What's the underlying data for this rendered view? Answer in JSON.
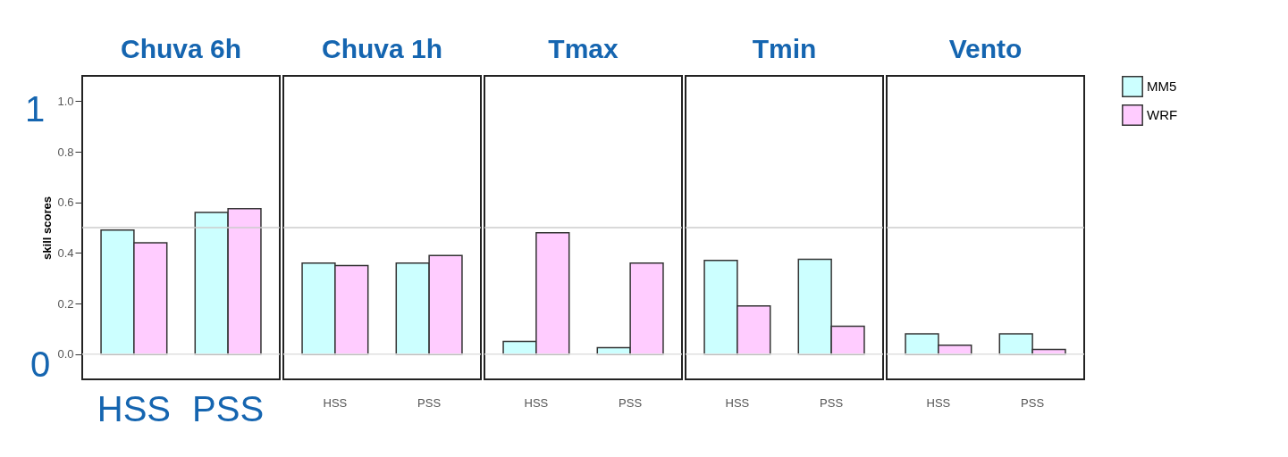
{
  "chart_data": [
    {
      "type": "bar",
      "title": "Chuva 6h",
      "ylabel": "skill scores",
      "categories": [
        "HSS",
        "PSS"
      ],
      "ylim": [
        -0.1,
        1.1
      ],
      "yticks": [
        {
          "value": 0,
          "label": "0.0"
        },
        {
          "value": 0.2,
          "label": "0.2"
        },
        {
          "value": 0.4,
          "label": "0.4"
        },
        {
          "value": 0.6,
          "label": "0.6"
        },
        {
          "value": 0.8,
          "label": "0.8"
        },
        {
          "value": 1,
          "label": "1.0"
        }
      ],
      "annotations": [
        "1",
        "0"
      ],
      "legend": "right",
      "ref_lines": [
        {
          "axis": "y",
          "value": 0.5,
          "color": "#cccccc"
        },
        {
          "axis": "y",
          "value": 0,
          "color": "#e0e0e0"
        }
      ],
      "series": [
        {
          "name": "MM5",
          "color": "#ccffff",
          "values": [
            0.49,
            0.56
          ]
        },
        {
          "name": "WRF",
          "color": "#ffccff",
          "values": [
            0.44,
            0.575
          ]
        }
      ]
    },
    {
      "type": "bar",
      "title": "Chuva 1h",
      "categories": [
        "HSS",
        "PSS"
      ],
      "ylim": [
        -0.1,
        1.1
      ],
      "tick_labels": "x",
      "ref_lines": [
        {
          "axis": "y",
          "value": 0.5,
          "color": "#cccccc"
        },
        {
          "axis": "y",
          "value": 0,
          "color": "#e0e0e0"
        }
      ],
      "series": [
        {
          "name": "MM5",
          "color": "#ccffff",
          "values": [
            0.36,
            0.36
          ]
        },
        {
          "name": "WRF",
          "color": "#ffccff",
          "values": [
            0.35,
            0.39
          ]
        }
      ]
    },
    {
      "type": "bar",
      "title": "Tmax",
      "categories": [
        "HSS",
        "PSS"
      ],
      "ylim": [
        -0.1,
        1.1
      ],
      "tick_labels": "x",
      "ref_lines": [
        {
          "axis": "y",
          "value": 0.5,
          "color": "#cccccc"
        },
        {
          "axis": "y",
          "value": 0,
          "color": "#e0e0e0"
        }
      ],
      "series": [
        {
          "name": "MM5",
          "color": "#ccffff",
          "values": [
            0.05,
            0.025
          ]
        },
        {
          "name": "WRF",
          "color": "#ffccff",
          "values": [
            0.48,
            0.36
          ]
        }
      ]
    },
    {
      "type": "bar",
      "title": "Tmin",
      "categories": [
        "HSS",
        "PSS"
      ],
      "ylim": [
        -0.1,
        1.1
      ],
      "tick_labels": "x",
      "ref_lines": [
        {
          "axis": "y",
          "value": 0.5,
          "color": "#cccccc"
        },
        {
          "axis": "y",
          "value": 0,
          "color": "#e0e0e0"
        }
      ],
      "series": [
        {
          "name": "MM5",
          "color": "#ccffff",
          "values": [
            0.37,
            0.375
          ]
        },
        {
          "name": "WRF",
          "color": "#ffccff",
          "values": [
            0.19,
            0.11
          ]
        }
      ]
    },
    {
      "type": "bar",
      "title": "Vento",
      "categories": [
        "HSS",
        "PSS"
      ],
      "ylim": [
        -0.1,
        1.1
      ],
      "tick_labels": "x",
      "ref_lines": [
        {
          "axis": "y",
          "value": 0.5,
          "color": "#cccccc"
        },
        {
          "axis": "y",
          "value": 0,
          "color": "#e0e0e0"
        }
      ],
      "series": [
        {
          "name": "MM5",
          "color": "#ccffff",
          "values": [
            0.08,
            0.08
          ]
        },
        {
          "name": "WRF",
          "color": "#ffccff",
          "values": [
            0.035,
            0.018
          ]
        }
      ]
    }
  ]
}
